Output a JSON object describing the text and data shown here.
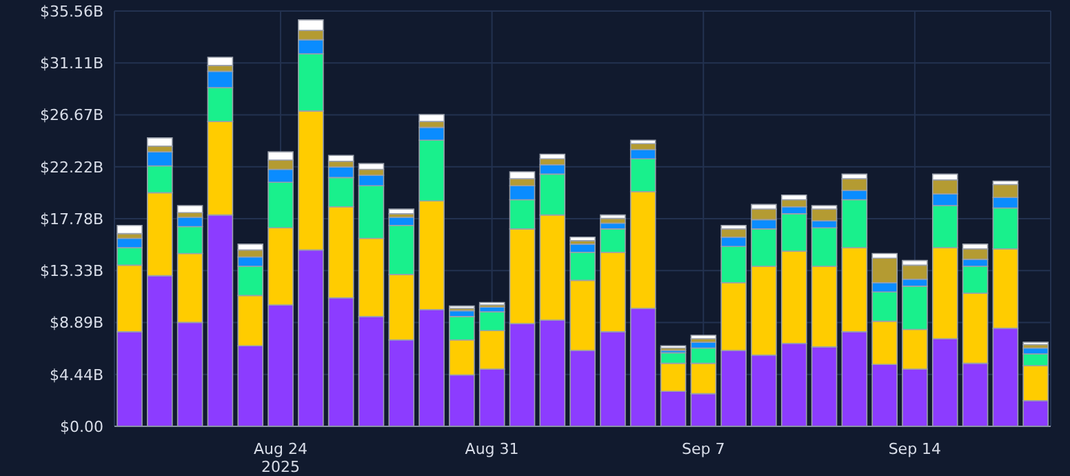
{
  "chart_data": {
    "type": "bar",
    "stacked": true,
    "grid": true,
    "x": [
      "2025-08-19",
      "2025-08-20",
      "2025-08-21",
      "2025-08-22",
      "2025-08-23",
      "2025-08-24",
      "2025-08-25",
      "2025-08-26",
      "2025-08-27",
      "2025-08-28",
      "2025-08-29",
      "2025-08-30",
      "2025-08-31",
      "2025-09-01",
      "2025-09-02",
      "2025-09-03",
      "2025-09-04",
      "2025-09-05",
      "2025-09-06",
      "2025-09-07",
      "2025-09-08",
      "2025-09-09",
      "2025-09-10",
      "2025-09-11",
      "2025-09-12",
      "2025-09-13",
      "2025-09-14",
      "2025-09-15",
      "2025-09-16",
      "2025-09-17",
      "2025-09-18"
    ],
    "xlim": [
      "2025-08-18T12:00",
      "2025-09-18T12:00"
    ],
    "xticks": [
      {
        "value": "2025-08-24",
        "label": "Aug 24\n2025"
      },
      {
        "value": "2025-08-31",
        "label": "Aug 31"
      },
      {
        "value": "2025-09-07",
        "label": "Sep 7"
      },
      {
        "value": "2025-09-14",
        "label": "Sep 14"
      }
    ],
    "ylim": [
      0,
      35.56
    ],
    "yticks": [
      {
        "value": 0,
        "label": "$0.00"
      },
      {
        "value": 4.445,
        "label": "$4.44B"
      },
      {
        "value": 8.89,
        "label": "$8.89B"
      },
      {
        "value": 13.335,
        "label": "$13.33B"
      },
      {
        "value": 17.78,
        "label": "$17.78B"
      },
      {
        "value": 22.225,
        "label": "$22.22B"
      },
      {
        "value": 26.67,
        "label": "$26.67B"
      },
      {
        "value": 31.115,
        "label": "$31.11B"
      },
      {
        "value": 35.56,
        "label": "$35.56B"
      }
    ],
    "series": [
      {
        "color": "#8c3cff",
        "values": [
          8.1,
          12.9,
          8.9,
          18.1,
          6.9,
          10.4,
          15.1,
          11.0,
          9.4,
          7.4,
          10.0,
          4.4,
          4.9,
          8.8,
          9.1,
          6.5,
          8.1,
          10.1,
          3.0,
          2.8,
          6.5,
          6.1,
          7.1,
          6.8,
          8.1,
          5.3,
          4.9,
          7.5,
          5.4,
          8.4,
          2.2
        ]
      },
      {
        "color": "#ffcc00",
        "values": [
          5.7,
          7.1,
          5.9,
          8.0,
          4.3,
          6.6,
          11.9,
          7.8,
          6.7,
          5.6,
          9.3,
          3.0,
          3.3,
          8.1,
          9.0,
          6.0,
          6.8,
          10.0,
          2.4,
          2.6,
          5.8,
          7.6,
          7.9,
          6.9,
          7.2,
          3.7,
          3.4,
          7.8,
          6.0,
          6.8,
          3.0
        ]
      },
      {
        "color": "#19f08c",
        "values": [
          1.5,
          2.3,
          2.3,
          2.9,
          2.5,
          3.9,
          4.9,
          2.5,
          4.5,
          4.2,
          5.2,
          2.0,
          1.6,
          2.5,
          3.5,
          2.4,
          2.0,
          2.8,
          0.9,
          1.3,
          3.1,
          3.2,
          3.2,
          3.3,
          4.1,
          2.5,
          3.7,
          3.6,
          2.3,
          3.5,
          1.0
        ]
      },
      {
        "color": "#0a8cff",
        "values": [
          0.8,
          1.2,
          0.8,
          1.4,
          0.8,
          1.1,
          1.2,
          0.9,
          0.9,
          0.7,
          1.1,
          0.5,
          0.4,
          1.2,
          0.8,
          0.7,
          0.5,
          0.8,
          0.2,
          0.5,
          0.8,
          0.8,
          0.6,
          0.6,
          0.8,
          0.8,
          0.6,
          1.0,
          0.6,
          0.9,
          0.5
        ]
      },
      {
        "color": "#b49b32",
        "values": [
          0.4,
          0.5,
          0.4,
          0.5,
          0.6,
          0.8,
          0.8,
          0.5,
          0.5,
          0.3,
          0.5,
          0.2,
          0.2,
          0.6,
          0.5,
          0.3,
          0.4,
          0.5,
          0.2,
          0.3,
          0.7,
          0.9,
          0.6,
          1.0,
          1.0,
          2.1,
          1.2,
          1.2,
          0.9,
          1.1,
          0.3
        ]
      },
      {
        "color": "#ffffff",
        "values": [
          0.7,
          0.7,
          0.6,
          0.7,
          0.5,
          0.7,
          0.9,
          0.5,
          0.5,
          0.4,
          0.6,
          0.2,
          0.2,
          0.6,
          0.4,
          0.3,
          0.3,
          0.3,
          0.2,
          0.3,
          0.3,
          0.4,
          0.4,
          0.3,
          0.4,
          0.4,
          0.4,
          0.5,
          0.4,
          0.3,
          0.2
        ]
      }
    ]
  }
}
